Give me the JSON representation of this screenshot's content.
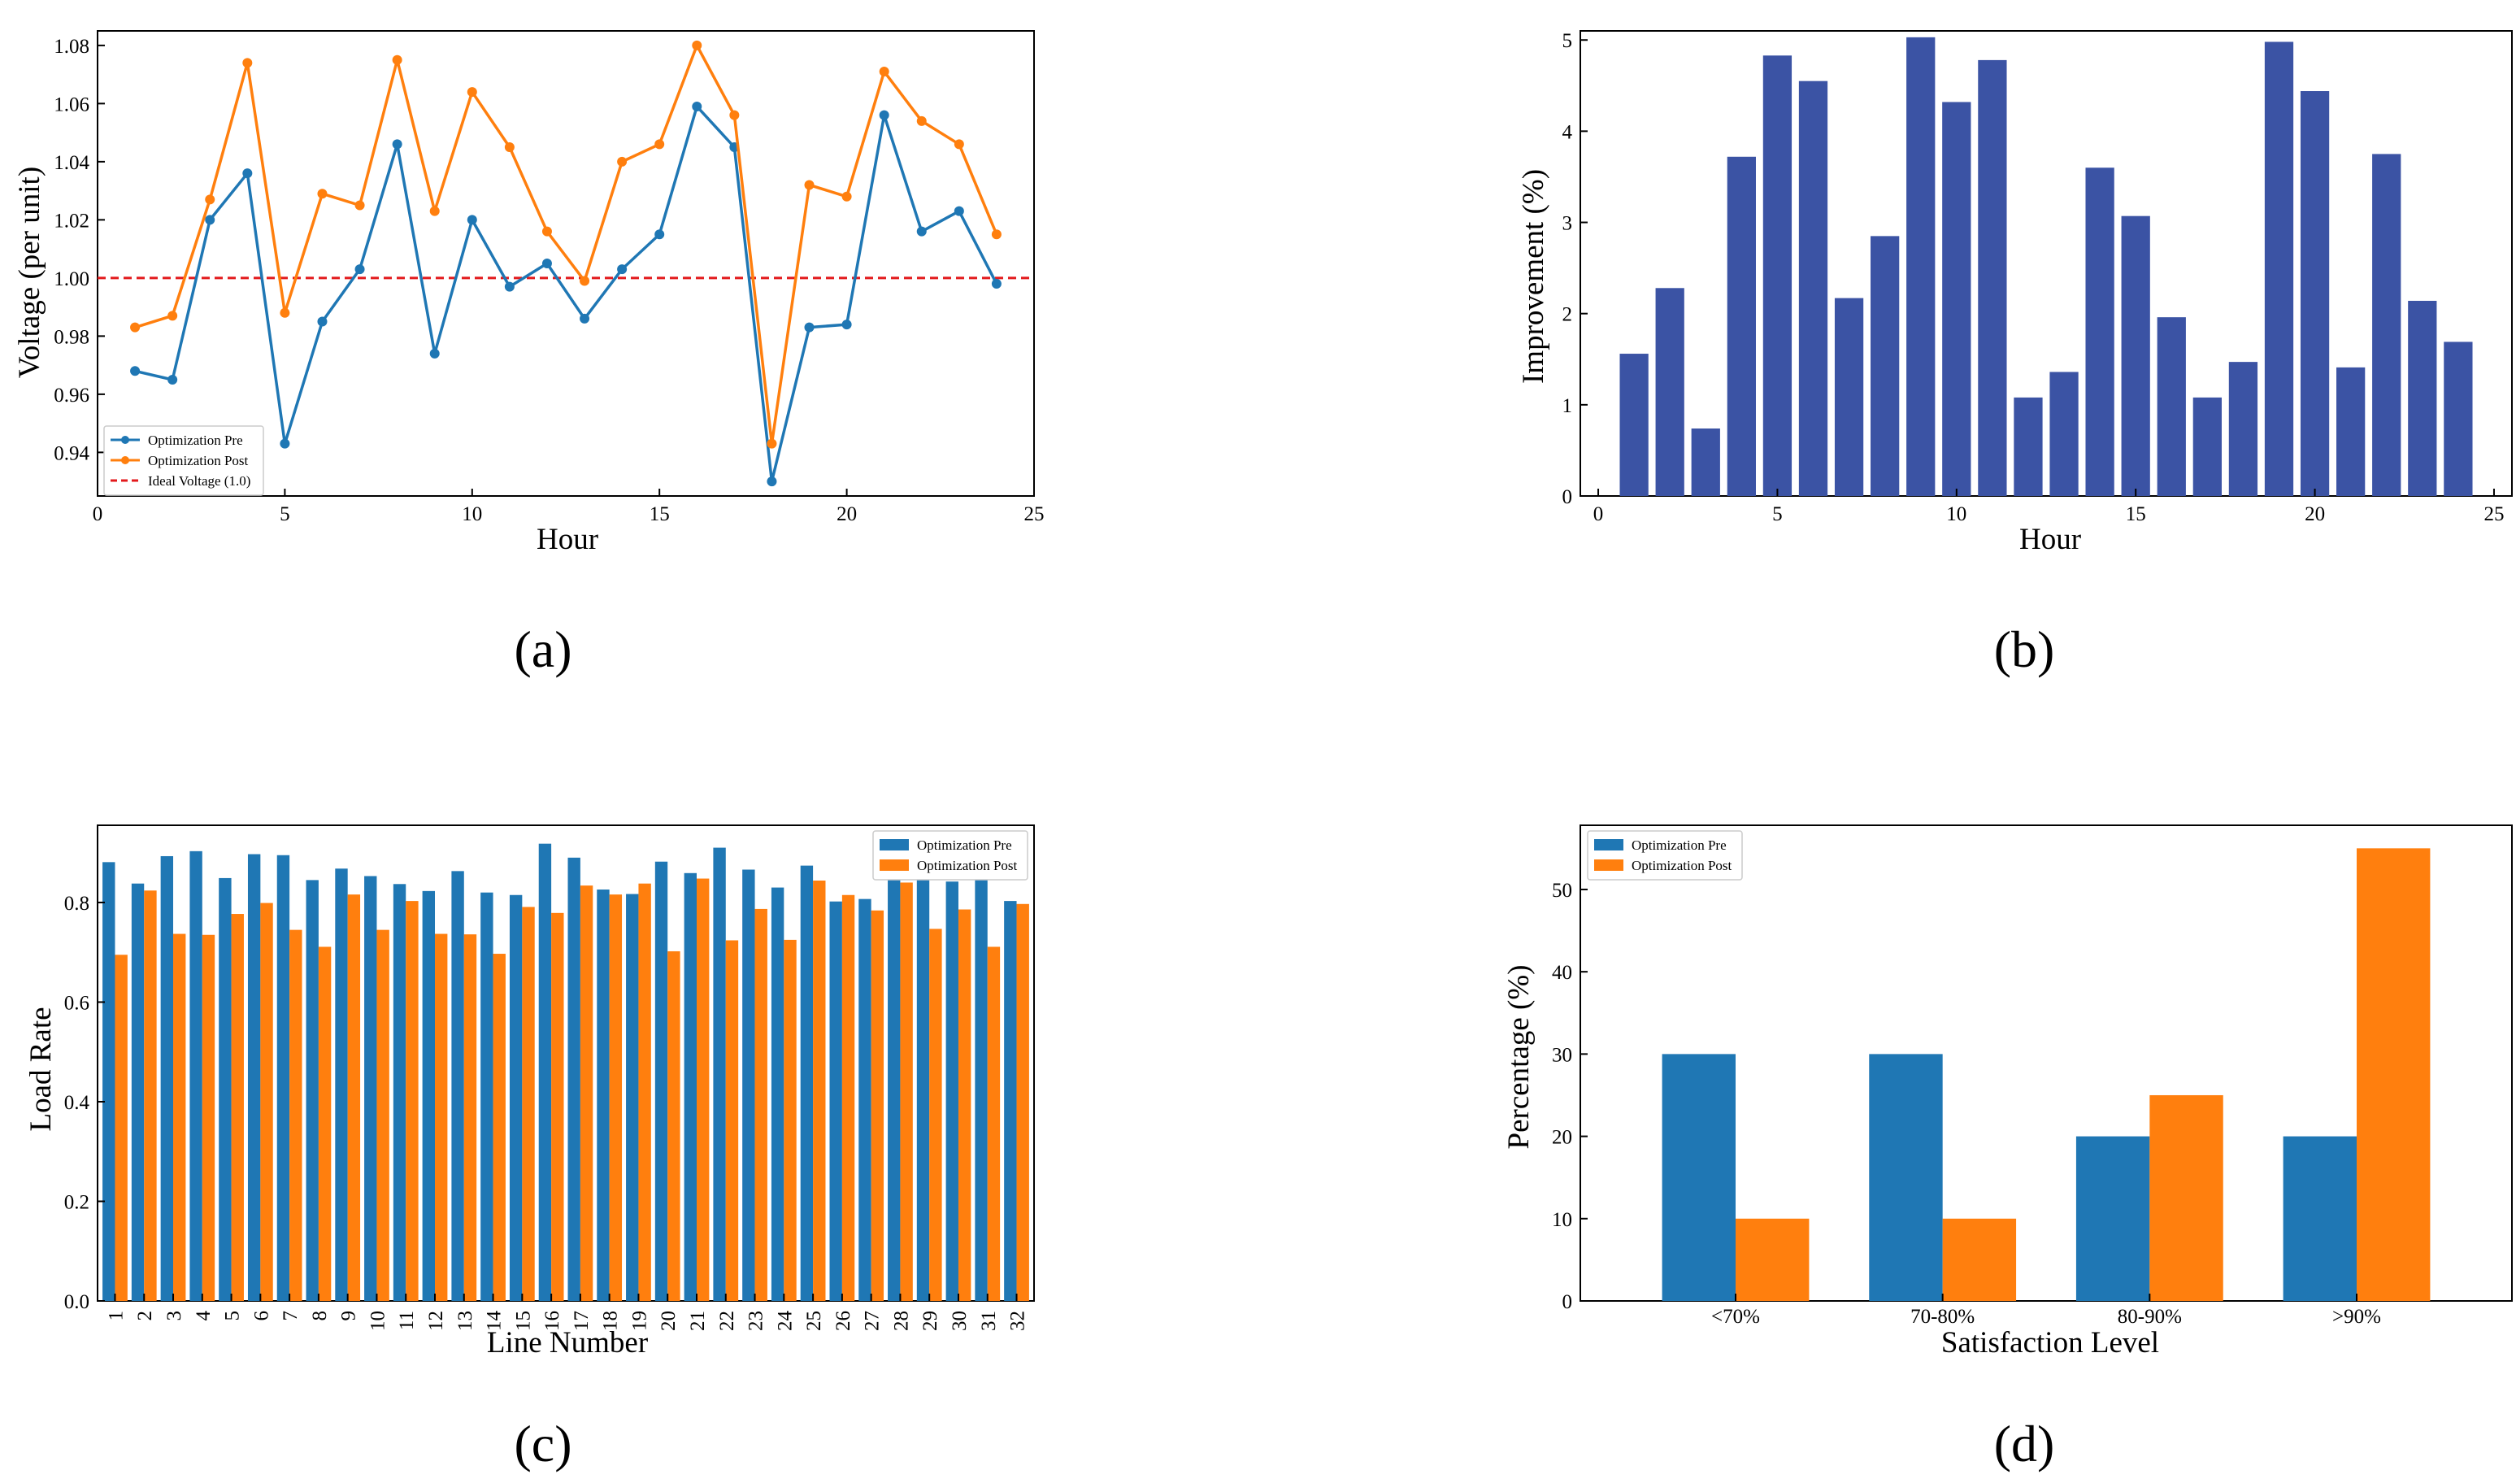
{
  "colors": {
    "pre": "#1f77b4",
    "post": "#ff7f0e",
    "ideal": "#e31a1c",
    "improvement": "#3b53a4"
  },
  "panel_labels": [
    "(a)",
    "(b)",
    "(c)",
    "(d)"
  ],
  "chart_data": [
    {
      "id": "a",
      "type": "line",
      "xlabel": "Hour",
      "ylabel": "Voltage (per unit)",
      "xlim": [
        0,
        25
      ],
      "ylim": [
        0.925,
        1.085
      ],
      "xticks": [
        0,
        5,
        10,
        15,
        20,
        25
      ],
      "yticks": [
        0.94,
        0.96,
        0.98,
        1.0,
        1.02,
        1.04,
        1.06,
        1.08
      ],
      "yticklabels": [
        "0.94",
        "0.96",
        "0.98",
        "1.00",
        "1.02",
        "1.04",
        "1.06",
        "1.08"
      ],
      "x": [
        1,
        2,
        3,
        4,
        5,
        6,
        7,
        8,
        9,
        10,
        11,
        12,
        13,
        14,
        15,
        16,
        17,
        18,
        19,
        20,
        21,
        22,
        23,
        24
      ],
      "series": [
        {
          "name": "Optimization Pre",
          "color_key": "pre",
          "values": [
            0.968,
            0.965,
            1.02,
            1.036,
            0.943,
            0.985,
            1.003,
            1.046,
            0.974,
            1.02,
            0.997,
            1.005,
            0.986,
            1.003,
            1.015,
            1.059,
            1.045,
            0.93,
            0.983,
            0.984,
            1.056,
            1.016,
            1.023,
            0.998
          ]
        },
        {
          "name": "Optimization Post",
          "color_key": "post",
          "values": [
            0.983,
            0.987,
            1.027,
            1.074,
            0.988,
            1.029,
            1.025,
            1.075,
            1.023,
            1.064,
            1.045,
            1.016,
            0.999,
            1.04,
            1.046,
            1.08,
            1.056,
            0.943,
            1.032,
            1.028,
            1.071,
            1.054,
            1.046,
            1.015
          ]
        }
      ],
      "reference_line": {
        "name": "Ideal Voltage (1.0)",
        "y": 1.0,
        "style": "dashed",
        "color_key": "ideal"
      },
      "legend_position": "lower-left"
    },
    {
      "id": "b",
      "type": "bar",
      "xlabel": "Hour",
      "ylabel": "Improvement (%)",
      "xlim": [
        -0.5,
        25.5
      ],
      "ylim": [
        0,
        5.1
      ],
      "xticks": [
        0,
        5,
        10,
        15,
        20,
        25
      ],
      "yticks": [
        0,
        1,
        2,
        3,
        4,
        5
      ],
      "x": [
        1,
        2,
        3,
        4,
        5,
        6,
        7,
        8,
        9,
        10,
        11,
        12,
        13,
        14,
        15,
        16,
        17,
        18,
        19,
        20,
        21,
        22,
        23,
        24
      ],
      "values": [
        1.56,
        2.28,
        0.74,
        3.72,
        4.83,
        4.55,
        2.17,
        2.85,
        5.03,
        4.32,
        4.78,
        1.08,
        1.36,
        3.6,
        3.07,
        1.96,
        1.08,
        1.47,
        4.98,
        4.44,
        1.41,
        3.75,
        2.14,
        1.69
      ],
      "color_key": "improvement"
    },
    {
      "id": "c",
      "type": "bar",
      "xlabel": "Line Number",
      "ylabel": "Load Rate",
      "ylim": [
        0,
        0.955
      ],
      "yticks": [
        0.0,
        0.2,
        0.4,
        0.6,
        0.8
      ],
      "yticklabels": [
        "0.0",
        "0.2",
        "0.4",
        "0.6",
        "0.8"
      ],
      "categories": [
        "1",
        "2",
        "3",
        "4",
        "5",
        "6",
        "7",
        "8",
        "9",
        "10",
        "11",
        "12",
        "13",
        "14",
        "15",
        "16",
        "17",
        "18",
        "19",
        "20",
        "21",
        "22",
        "23",
        "24",
        "25",
        "26",
        "27",
        "28",
        "29",
        "30",
        "31",
        "32"
      ],
      "series": [
        {
          "name": "Optimization Pre",
          "color_key": "pre",
          "values": [
            0.881,
            0.838,
            0.893,
            0.903,
            0.849,
            0.897,
            0.895,
            0.845,
            0.868,
            0.853,
            0.837,
            0.823,
            0.863,
            0.82,
            0.815,
            0.918,
            0.89,
            0.826,
            0.817,
            0.882,
            0.859,
            0.91,
            0.866,
            0.83,
            0.874,
            0.802,
            0.807,
            0.855,
            0.865,
            0.842,
            0.862,
            0.803
          ]
        },
        {
          "name": "Optimization Post",
          "color_key": "post",
          "values": [
            0.695,
            0.824,
            0.737,
            0.735,
            0.777,
            0.799,
            0.745,
            0.711,
            0.816,
            0.745,
            0.803,
            0.737,
            0.736,
            0.697,
            0.791,
            0.779,
            0.834,
            0.816,
            0.838,
            0.702,
            0.848,
            0.724,
            0.787,
            0.725,
            0.844,
            0.815,
            0.784,
            0.84,
            0.747,
            0.786,
            0.711,
            0.797
          ]
        }
      ],
      "legend_position": "top-right"
    },
    {
      "id": "d",
      "type": "bar",
      "xlabel": "Satisfaction Level",
      "ylabel": "Percentage (%)",
      "ylim": [
        0,
        57.8
      ],
      "yticks": [
        0,
        10,
        20,
        30,
        40,
        50
      ],
      "categories": [
        "<70%",
        "70-80%",
        "80-90%",
        ">90%"
      ],
      "series": [
        {
          "name": "Optimization Pre",
          "color_key": "pre",
          "values": [
            30,
            30,
            20,
            20
          ]
        },
        {
          "name": "Optimization Post",
          "color_key": "post",
          "values": [
            10,
            10,
            25,
            55
          ]
        }
      ],
      "legend_position": "top-left"
    }
  ]
}
